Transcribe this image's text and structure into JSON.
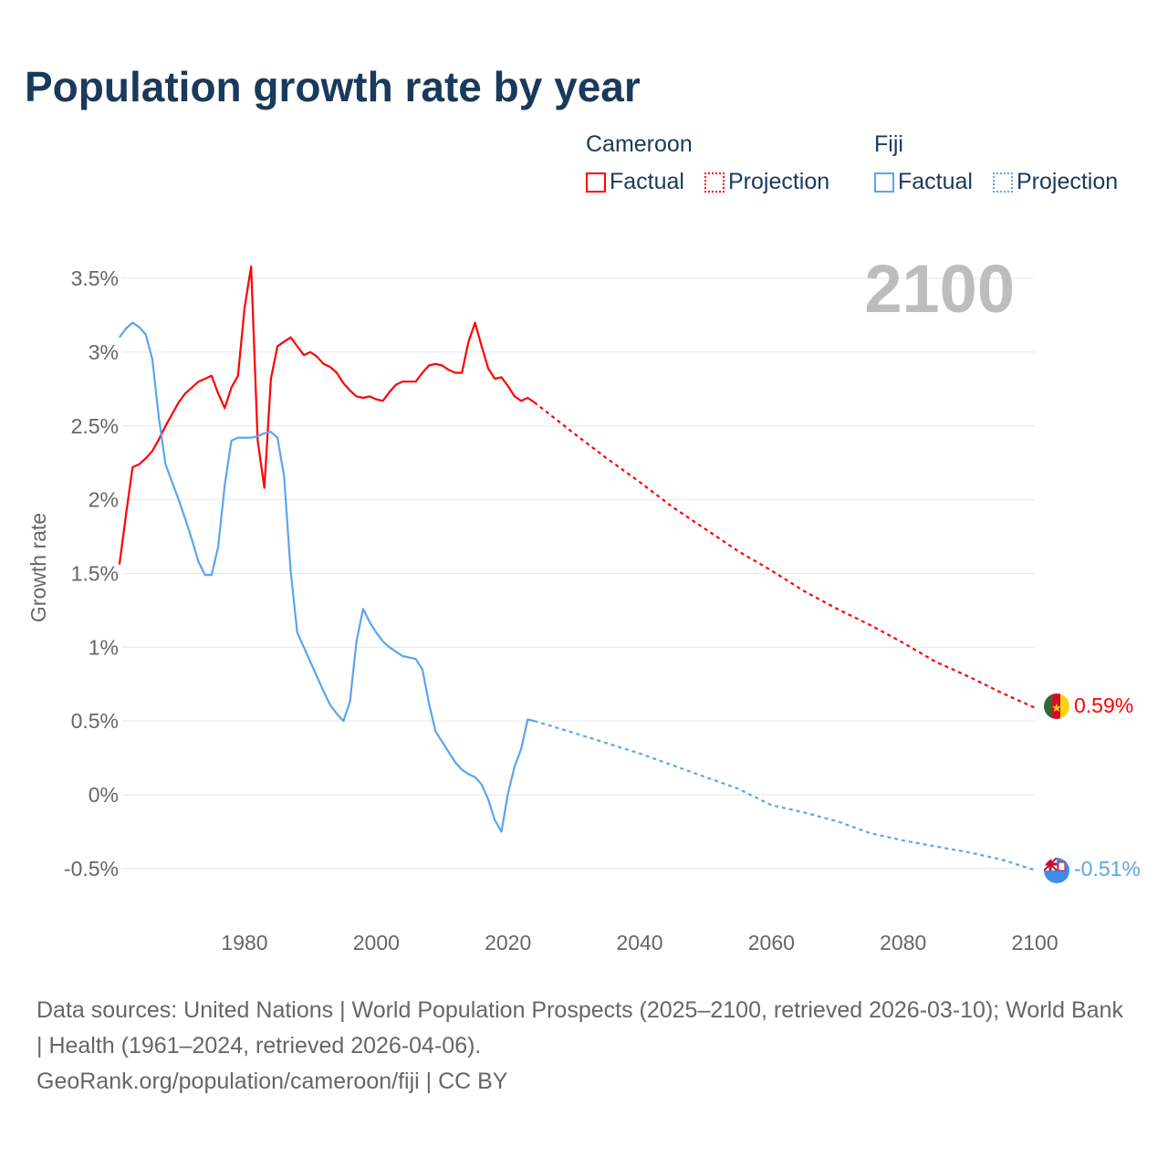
{
  "title": "Population growth rate by year",
  "legend": {
    "groups": [
      {
        "name": "Cameroon",
        "color": "#ff0000",
        "factual": "Factual",
        "projection": "Projection"
      },
      {
        "name": "Fiji",
        "color": "#5aa5ec",
        "factual": "Factual",
        "projection": "Projection"
      }
    ]
  },
  "year_label": "2100",
  "chart_data": {
    "type": "line",
    "title": "Population growth rate by year",
    "xlabel": "",
    "ylabel": "Growth rate",
    "xlim": [
      1961,
      2100
    ],
    "ylim": [
      -0.75,
      3.6
    ],
    "x_ticks": [
      1980,
      2000,
      2020,
      2040,
      2060,
      2080,
      2100
    ],
    "y_ticks": [
      -0.5,
      0,
      0.5,
      1,
      1.5,
      2,
      2.5,
      3,
      3.5
    ],
    "y_tick_labels": [
      "-0.5%",
      "0%",
      "0.5%",
      "1%",
      "1.5%",
      "2%",
      "2.5%",
      "3%",
      "3.5%"
    ],
    "grid": true,
    "legend_position": "top-right",
    "series": [
      {
        "name": "Cameroon",
        "color": "#ff0000",
        "end_label": "0.59%",
        "factual": {
          "x": [
            1961,
            1962,
            1963,
            1964,
            1965,
            1966,
            1967,
            1968,
            1969,
            1970,
            1971,
            1972,
            1973,
            1974,
            1975,
            1976,
            1977,
            1978,
            1979,
            1980,
            1981,
            1982,
            1983,
            1984,
            1985,
            1986,
            1987,
            1988,
            1989,
            1990,
            1991,
            1992,
            1993,
            1994,
            1995,
            1996,
            1997,
            1998,
            1999,
            2000,
            2001,
            2002,
            2003,
            2004,
            2005,
            2006,
            2007,
            2008,
            2009,
            2010,
            2011,
            2012,
            2013,
            2014,
            2015,
            2016,
            2017,
            2018,
            2019,
            2020,
            2021,
            2022,
            2023,
            2024
          ],
          "y": [
            1.56,
            1.9,
            2.22,
            2.24,
            2.28,
            2.33,
            2.41,
            2.5,
            2.58,
            2.66,
            2.72,
            2.76,
            2.8,
            2.82,
            2.84,
            2.72,
            2.62,
            2.76,
            2.84,
            3.3,
            3.58,
            2.4,
            2.08,
            2.82,
            3.04,
            3.07,
            3.1,
            3.04,
            2.98,
            3.0,
            2.97,
            2.92,
            2.9,
            2.86,
            2.79,
            2.74,
            2.7,
            2.69,
            2.7,
            2.68,
            2.67,
            2.73,
            2.78,
            2.8,
            2.8,
            2.8,
            2.86,
            2.91,
            2.92,
            2.91,
            2.88,
            2.86,
            2.86,
            3.07,
            3.2,
            3.04,
            2.89,
            2.82,
            2.83,
            2.77,
            2.7,
            2.67,
            2.69,
            2.66
          ]
        },
        "projection": {
          "x": [
            2024,
            2030,
            2035,
            2040,
            2045,
            2050,
            2055,
            2060,
            2065,
            2070,
            2075,
            2080,
            2085,
            2090,
            2095,
            2100
          ],
          "y": [
            2.66,
            2.45,
            2.28,
            2.12,
            1.95,
            1.8,
            1.65,
            1.52,
            1.38,
            1.26,
            1.15,
            1.03,
            0.9,
            0.8,
            0.69,
            0.59
          ]
        }
      },
      {
        "name": "Fiji",
        "color": "#5aa5ec",
        "end_label": "-0.51%",
        "factual": {
          "x": [
            1961,
            1962,
            1963,
            1964,
            1965,
            1966,
            1967,
            1968,
            1969,
            1970,
            1971,
            1972,
            1973,
            1974,
            1975,
            1976,
            1977,
            1978,
            1979,
            1980,
            1981,
            1982,
            1983,
            1984,
            1985,
            1986,
            1987,
            1988,
            1989,
            1990,
            1991,
            1992,
            1993,
            1994,
            1995,
            1996,
            1997,
            1998,
            1999,
            2000,
            2001,
            2002,
            2003,
            2004,
            2005,
            2006,
            2007,
            2008,
            2009,
            2010,
            2011,
            2012,
            2013,
            2014,
            2015,
            2016,
            2017,
            2018,
            2019,
            2020,
            2021,
            2022,
            2023,
            2024
          ],
          "y": [
            3.1,
            3.16,
            3.2,
            3.17,
            3.12,
            2.95,
            2.55,
            2.24,
            2.12,
            2.0,
            1.87,
            1.73,
            1.58,
            1.49,
            1.49,
            1.68,
            2.1,
            2.4,
            2.42,
            2.42,
            2.42,
            2.43,
            2.45,
            2.46,
            2.42,
            2.16,
            1.52,
            1.1,
            1.0,
            0.9,
            0.8,
            0.7,
            0.61,
            0.55,
            0.5,
            0.63,
            1.04,
            1.26,
            1.17,
            1.1,
            1.04,
            1.0,
            0.97,
            0.94,
            0.93,
            0.92,
            0.85,
            0.62,
            0.43,
            0.36,
            0.29,
            0.22,
            0.17,
            0.14,
            0.12,
            0.07,
            -0.03,
            -0.17,
            -0.25,
            0.01,
            0.19,
            0.31,
            0.51,
            0.5
          ]
        },
        "projection": {
          "x": [
            2024,
            2030,
            2035,
            2040,
            2045,
            2050,
            2055,
            2060,
            2065,
            2070,
            2075,
            2080,
            2085,
            2090,
            2095,
            2100
          ],
          "y": [
            0.5,
            0.42,
            0.35,
            0.28,
            0.2,
            0.12,
            0.04,
            -0.07,
            -0.12,
            -0.18,
            -0.26,
            -0.31,
            -0.35,
            -0.39,
            -0.44,
            -0.51
          ]
        }
      }
    ]
  },
  "source": {
    "line1": "Data sources: United Nations | World Population Prospects (2025–2100, retrieved 2026-03-10); World Bank | Health (1961–2024, retrieved 2026-04-06).",
    "line2": "GeoRank.org/population/cameroon/fiji | CC BY"
  }
}
